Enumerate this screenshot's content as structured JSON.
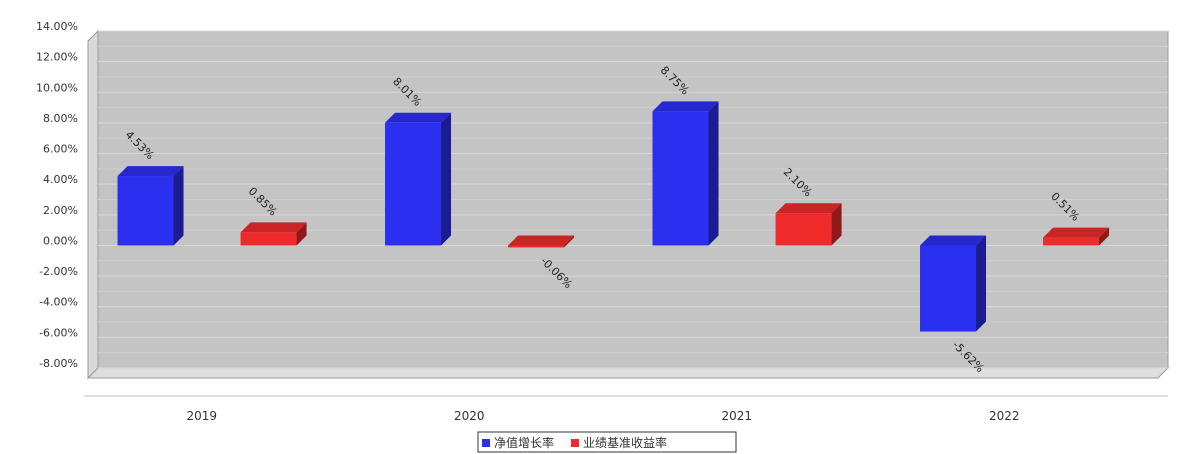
{
  "chart_data": {
    "type": "bar",
    "title": "",
    "categories": [
      "2019",
      "2020",
      "2021",
      "2022"
    ],
    "series": [
      {
        "name": "净值增长率",
        "color": "#2b2ff0",
        "values": [
          4.53,
          8.01,
          8.75,
          -5.62
        ],
        "labels": [
          "4.53%",
          "8.01%",
          "8.75%",
          "-5.62%"
        ]
      },
      {
        "name": "业绩基准收益率",
        "color": "#ee2a2a",
        "values": [
          0.85,
          -0.06,
          2.1,
          0.51
        ],
        "labels": [
          "0.85%",
          "-0.06%",
          "2.10%",
          "0.51%"
        ]
      }
    ],
    "ylim": [
      -8,
      14
    ],
    "yticks": [
      "14.00%",
      "12.00%",
      "10.00%",
      "8.00%",
      "6.00%",
      "4.00%",
      "2.00%",
      "0.00%",
      "-2.00%",
      "-4.00%",
      "-6.00%",
      "-8.00%"
    ],
    "ytick_values": [
      14,
      12,
      10,
      8,
      6,
      4,
      2,
      0,
      -2,
      -4,
      -6,
      -8
    ],
    "xlabel": "",
    "ylabel": "",
    "grid": true,
    "legend_position": "bottom-center"
  }
}
